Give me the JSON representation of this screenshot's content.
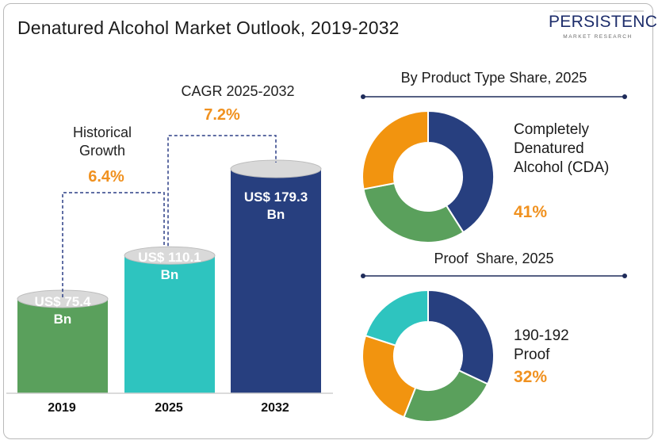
{
  "title": "Denatured Alcohol Market Outlook, 2019-2032",
  "logo": {
    "word": "PERSISTENCE",
    "sub": "MARKET RESEARCH"
  },
  "colors": {
    "accent": "#f0911f",
    "green": "#5aa05c",
    "teal": "#2ec4bf",
    "navy": "#273f7f",
    "orange": "#f2940f"
  },
  "chart_data": [
    {
      "type": "bar",
      "categories": [
        "2019",
        "2025",
        "2032"
      ],
      "values": [
        75.4,
        110.1,
        179.3
      ],
      "value_labels": [
        "US$ 75.4 Bn",
        "US$ 110.1 Bn",
        "US$ 179.3 Bn"
      ],
      "bar_colors": [
        "#5aa05c",
        "#2ec4bf",
        "#273f7f"
      ],
      "annotations": [
        {
          "label": "Historical Growth",
          "rate": "6.4%"
        },
        {
          "label": "CAGR 2025-2032",
          "rate": "7.2%"
        }
      ]
    },
    {
      "type": "pie",
      "title": "By Product Type Share, 2025",
      "highlight": {
        "label": "Completely Denatured Alcohol (CDA)",
        "value": "41%"
      },
      "slices": [
        {
          "value": 41,
          "color": "#273f7f"
        },
        {
          "value": 31,
          "color": "#5aa05c"
        },
        {
          "value": 28,
          "color": "#f2940f"
        }
      ]
    },
    {
      "type": "pie",
      "title": "Proof  Share, 2025",
      "highlight": {
        "label": "190-192 Proof",
        "value": "32%"
      },
      "slices": [
        {
          "value": 32,
          "color": "#273f7f"
        },
        {
          "value": 24,
          "color": "#5aa05c"
        },
        {
          "value": 24,
          "color": "#f2940f"
        },
        {
          "value": 20,
          "color": "#2ec4bf"
        }
      ]
    }
  ]
}
